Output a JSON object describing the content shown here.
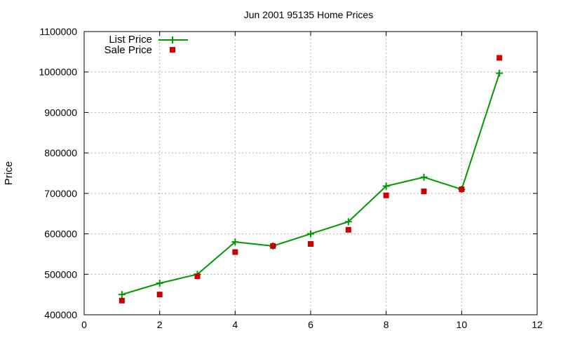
{
  "chart_data": {
    "type": "line",
    "title": "Jun 2001 95135 Home Prices",
    "xlabel": "",
    "ylabel": "Price",
    "xlim": [
      0,
      12
    ],
    "ylim": [
      400000,
      1100000
    ],
    "x_ticks": [
      0,
      2,
      4,
      6,
      8,
      10,
      12
    ],
    "y_ticks": [
      400000,
      500000,
      600000,
      700000,
      800000,
      900000,
      1000000,
      1100000
    ],
    "x_tick_labels": [
      "0",
      "2",
      "4",
      "6",
      "8",
      "10",
      "12"
    ],
    "y_tick_labels": [
      "400000",
      "500000",
      "600000",
      "700000",
      "800000",
      "900000",
      "1000000",
      "1100000"
    ],
    "grid": true,
    "legend_position": "top-left",
    "x": [
      1,
      2,
      3,
      4,
      5,
      6,
      7,
      8,
      9,
      10,
      11
    ],
    "series": [
      {
        "name": "List Price",
        "style": "line-with-plus-markers",
        "color": "#009900",
        "values": [
          450000,
          478000,
          500000,
          580000,
          570000,
          600000,
          630000,
          718000,
          740000,
          710000,
          997000
        ]
      },
      {
        "name": "Sale Price",
        "style": "square-markers",
        "color": "#cc0000",
        "values": [
          435000,
          450000,
          495000,
          555000,
          570000,
          575000,
          610000,
          695000,
          705000,
          710000,
          1035000
        ]
      }
    ]
  }
}
